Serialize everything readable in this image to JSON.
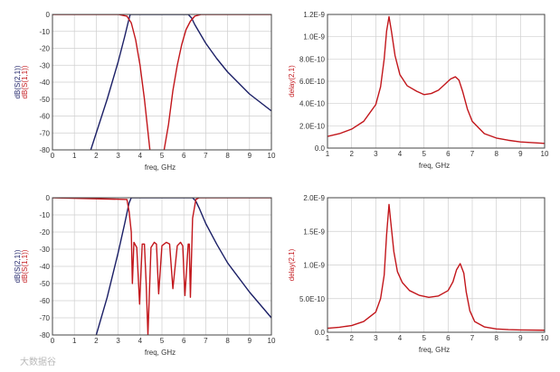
{
  "colors": {
    "s21": "#1b1f66",
    "s11": "#c2161b",
    "delay": "#c2161b",
    "grid": "#cfcfcf",
    "axis": "#444444"
  },
  "watermark": "大数据谷",
  "chart_data": [
    {
      "id": "top-left",
      "type": "line",
      "xlabel": "freq, GHz",
      "ylabels": [
        "dB(S(2,1))",
        "dB(S(1,1))"
      ],
      "xlim": [
        0,
        10
      ],
      "ylim": [
        -80,
        0
      ],
      "xticks": [
        0,
        1,
        2,
        3,
        4,
        5,
        6,
        7,
        8,
        9,
        10
      ],
      "yticks": [
        0,
        -10,
        -20,
        -30,
        -40,
        -50,
        -60,
        -70,
        -80
      ],
      "series": [
        {
          "name": "dB(S(2,1))",
          "color": "#1b1f66",
          "x": [
            1.75,
            2.0,
            2.5,
            3.0,
            3.3,
            3.45,
            3.55,
            3.8,
            4.2,
            5.0,
            5.5,
            6.0,
            6.2,
            6.35,
            6.5,
            7.0,
            7.5,
            8.0,
            9.0,
            10.0
          ],
          "y": [
            -80,
            -70,
            -50,
            -28,
            -13,
            -5,
            0,
            0,
            0,
            0,
            0,
            0,
            0,
            -2,
            -6,
            -17,
            -26,
            -34,
            -47,
            -57
          ]
        },
        {
          "name": "dB(S(1,1))",
          "color": "#c2161b",
          "x": [
            0,
            3.0,
            3.4,
            3.6,
            3.8,
            4.0,
            4.2,
            4.35,
            4.45,
            null,
            5.1,
            5.3,
            5.5,
            5.7,
            5.9,
            6.1,
            6.3,
            6.5,
            6.8,
            7.2,
            10.0
          ],
          "y": [
            0,
            0,
            -1,
            -5,
            -15,
            -30,
            -50,
            -68,
            -80,
            null,
            -80,
            -65,
            -45,
            -30,
            -18,
            -9,
            -4,
            -1,
            0,
            0,
            0
          ]
        }
      ]
    },
    {
      "id": "top-right",
      "type": "line",
      "xlabel": "freq, GHz",
      "ylabel": "delay(2,1)",
      "xlim": [
        1,
        10
      ],
      "ylim": [
        0,
        1.2e-09
      ],
      "xticks": [
        1,
        2,
        3,
        4,
        5,
        6,
        7,
        8,
        9,
        10
      ],
      "yticks": [
        0,
        2e-10,
        4e-10,
        6e-10,
        8e-10,
        1e-09,
        1.2e-09
      ],
      "ytick_labels": [
        "0.0",
        "2.0E-10",
        "4.0E-10",
        "6.0E-10",
        "8.0E-10",
        "1.0E-9",
        "1.2E-9"
      ],
      "series": [
        {
          "name": "delay(2,1)",
          "color": "#c2161b",
          "x": [
            1.0,
            1.5,
            2.0,
            2.5,
            3.0,
            3.2,
            3.35,
            3.45,
            3.55,
            3.65,
            3.8,
            4.0,
            4.3,
            4.7,
            5.0,
            5.3,
            5.6,
            5.9,
            6.1,
            6.3,
            6.45,
            6.6,
            6.8,
            7.0,
            7.5,
            8.0,
            8.5,
            9.0,
            10.0
          ],
          "y": [
            1.05e-10,
            1.3e-10,
            1.7e-10,
            2.4e-10,
            3.9e-10,
            5.5e-10,
            8e-10,
            1.05e-09,
            1.18e-09,
            1.05e-09,
            8.3e-10,
            6.6e-10,
            5.6e-10,
            5.1e-10,
            4.8e-10,
            4.9e-10,
            5.2e-10,
            5.8e-10,
            6.2e-10,
            6.4e-10,
            6.1e-10,
            5.1e-10,
            3.5e-10,
            2.4e-10,
            1.3e-10,
            9e-11,
            7e-11,
            5.5e-11,
            4.2e-11
          ]
        }
      ]
    },
    {
      "id": "bottom-left",
      "type": "line",
      "xlabel": "freq, GHz",
      "ylabels": [
        "dB(S(2,1))",
        "dB(S(1,1))"
      ],
      "xlim": [
        0,
        10
      ],
      "ylim": [
        -80,
        0
      ],
      "xticks": [
        0,
        1,
        2,
        3,
        4,
        5,
        6,
        7,
        8,
        9,
        10
      ],
      "yticks": [
        0,
        -10,
        -20,
        -30,
        -40,
        -50,
        -60,
        -70,
        -80
      ],
      "series": [
        {
          "name": "dB(S(2,1))",
          "color": "#1b1f66",
          "x": [
            2.0,
            2.5,
            3.0,
            3.3,
            3.5,
            3.6,
            4.0,
            5.0,
            6.0,
            6.4,
            6.55,
            6.7,
            7.0,
            7.5,
            8.0,
            9.0,
            10.0
          ],
          "y": [
            -80,
            -58,
            -32,
            -15,
            -3,
            0,
            0,
            0,
            0,
            0,
            -2,
            -6,
            -15,
            -27,
            -38,
            -55,
            -70
          ]
        },
        {
          "name": "dB(S(1,1))",
          "color": "#c2161b",
          "x": [
            0,
            3.4,
            3.5,
            3.6,
            3.65,
            3.72,
            3.85,
            3.98,
            4.1,
            4.2,
            4.28,
            4.36,
            4.5,
            4.65,
            4.75,
            4.85,
            5.0,
            5.2,
            5.35,
            5.5,
            5.7,
            5.85,
            5.95,
            6.05,
            6.2,
            6.25,
            6.3,
            6.4,
            6.55,
            6.7,
            10.0
          ],
          "y": [
            0,
            -1,
            -8,
            -20,
            -50,
            -26,
            -29,
            -62,
            -27,
            -27,
            -50,
            -80,
            -29,
            -26,
            -27,
            -56,
            -28,
            -26,
            -27,
            -53,
            -28,
            -26,
            -28,
            -57,
            -27,
            -27,
            -58,
            -12,
            -1,
            0,
            0
          ]
        }
      ]
    },
    {
      "id": "bottom-right",
      "type": "line",
      "xlabel": "freq, GHz",
      "ylabel": "delay(2,1)",
      "xlim": [
        1,
        10
      ],
      "ylim": [
        0,
        2e-09
      ],
      "xticks": [
        1,
        2,
        3,
        4,
        5,
        6,
        7,
        8,
        9,
        10
      ],
      "yticks": [
        0,
        5e-10,
        1e-09,
        1.5e-09,
        2e-09
      ],
      "ytick_labels": [
        "0.0",
        "5.0E-10",
        "1.0E-9",
        "1.5E-9",
        "2.0E-9"
      ],
      "series": [
        {
          "name": "delay(2,1)",
          "color": "#c2161b",
          "x": [
            1.0,
            1.5,
            2.0,
            2.5,
            3.0,
            3.2,
            3.35,
            3.45,
            3.55,
            3.62,
            3.75,
            3.9,
            4.1,
            4.4,
            4.8,
            5.2,
            5.6,
            6.0,
            6.2,
            6.35,
            6.5,
            6.65,
            6.75,
            6.9,
            7.1,
            7.5,
            8.0,
            8.5,
            9.0,
            10.0
          ],
          "y": [
            6e-11,
            7.5e-11,
            1e-10,
            1.6e-10,
            3e-10,
            5e-10,
            8.5e-10,
            1.45e-09,
            1.9e-09,
            1.65e-09,
            1.2e-09,
            9e-10,
            7.4e-10,
            6.2e-10,
            5.5e-10,
            5.2e-10,
            5.4e-10,
            6.2e-10,
            7.5e-10,
            9.3e-10,
            1.02e-09,
            8.8e-10,
            6e-10,
            3.2e-10,
            1.6e-10,
            8e-11,
            5e-11,
            4e-11,
            3.5e-11,
            3e-11
          ]
        }
      ]
    }
  ]
}
